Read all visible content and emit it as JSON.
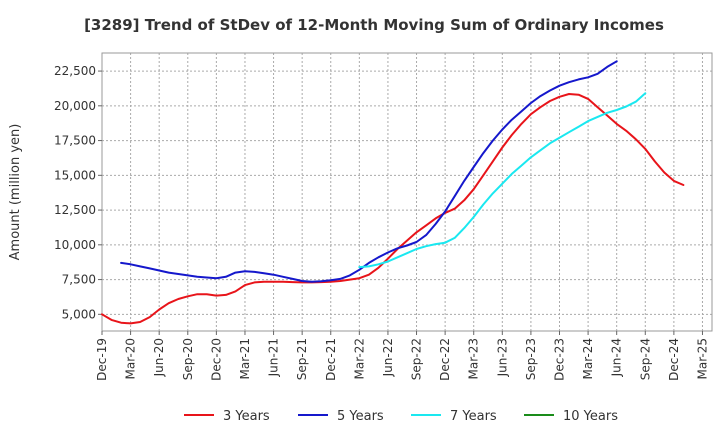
{
  "chart_data": {
    "type": "line",
    "title": "[3289]  Trend of StDev of 12-Month Moving Sum of Ordinary Incomes",
    "xlabel": "",
    "ylabel": "Amount (million yen)",
    "ylim": [
      3800,
      23800
    ],
    "yticks": [
      5000,
      7500,
      10000,
      12500,
      15000,
      17500,
      20000,
      22500
    ],
    "ytick_labels": [
      "5,000",
      "7,500",
      "10,000",
      "12,500",
      "15,000",
      "17,500",
      "20,000",
      "22,500"
    ],
    "x_tick_labels": [
      "Dec-19",
      "Mar-20",
      "Jun-20",
      "Sep-20",
      "Dec-20",
      "Mar-21",
      "Jun-21",
      "Sep-21",
      "Dec-21",
      "Mar-22",
      "Jun-22",
      "Sep-22",
      "Dec-22",
      "Mar-23",
      "Jun-23",
      "Sep-23",
      "Dec-23",
      "Mar-24",
      "Jun-24",
      "Sep-24",
      "Dec-24",
      "Mar-25"
    ],
    "x_start": "2019-12",
    "months_count": 64,
    "grid": true,
    "legend_position": "bottom",
    "series": [
      {
        "name": "3 Years",
        "color": "#e8141a",
        "start_index": 0,
        "values": [
          5000,
          4600,
          4400,
          4350,
          4450,
          4800,
          5350,
          5800,
          6100,
          6300,
          6450,
          6450,
          6350,
          6400,
          6650,
          7100,
          7300,
          7350,
          7350,
          7350,
          7320,
          7300,
          7300,
          7320,
          7350,
          7400,
          7500,
          7600,
          7850,
          8350,
          9000,
          9700,
          10300,
          10900,
          11400,
          11900,
          12300,
          12600,
          13200,
          14000,
          15000,
          16000,
          17000,
          17900,
          18700,
          19400,
          19900,
          20350,
          20650,
          20850,
          20800,
          20500,
          19900,
          19300,
          18700,
          18200,
          17600,
          16900,
          16000,
          15200,
          14600,
          14300
        ]
      },
      {
        "name": "5 Years",
        "color": "#1518cc",
        "start_index": 2,
        "values": [
          8700,
          8600,
          8450,
          8300,
          8150,
          8000,
          7900,
          7800,
          7700,
          7650,
          7600,
          7700,
          8000,
          8100,
          8050,
          7950,
          7850,
          7700,
          7550,
          7400,
          7350,
          7380,
          7450,
          7550,
          7800,
          8200,
          8700,
          9100,
          9450,
          9750,
          9950,
          10200,
          10700,
          11500,
          12400,
          13500,
          14600,
          15600,
          16600,
          17500,
          18300,
          19000,
          19600,
          20200,
          20700,
          21100,
          21450,
          21700,
          21900,
          22050,
          22300,
          22800,
          23200
        ]
      },
      {
        "name": "7 Years",
        "color": "#1ae8f0",
        "start_index": 27,
        "values": [
          8400,
          8450,
          8600,
          8800,
          9100,
          9400,
          9700,
          9900,
          10050,
          10150,
          10500,
          11200,
          12000,
          12900,
          13700,
          14400,
          15100,
          15700,
          16300,
          16800,
          17300,
          17700,
          18100,
          18500,
          18900,
          19200,
          19500,
          19700,
          19950,
          20300,
          20900
        ]
      },
      {
        "name": "10 Years",
        "color": "#1a8c1a",
        "start_index": 0,
        "values": []
      }
    ]
  }
}
